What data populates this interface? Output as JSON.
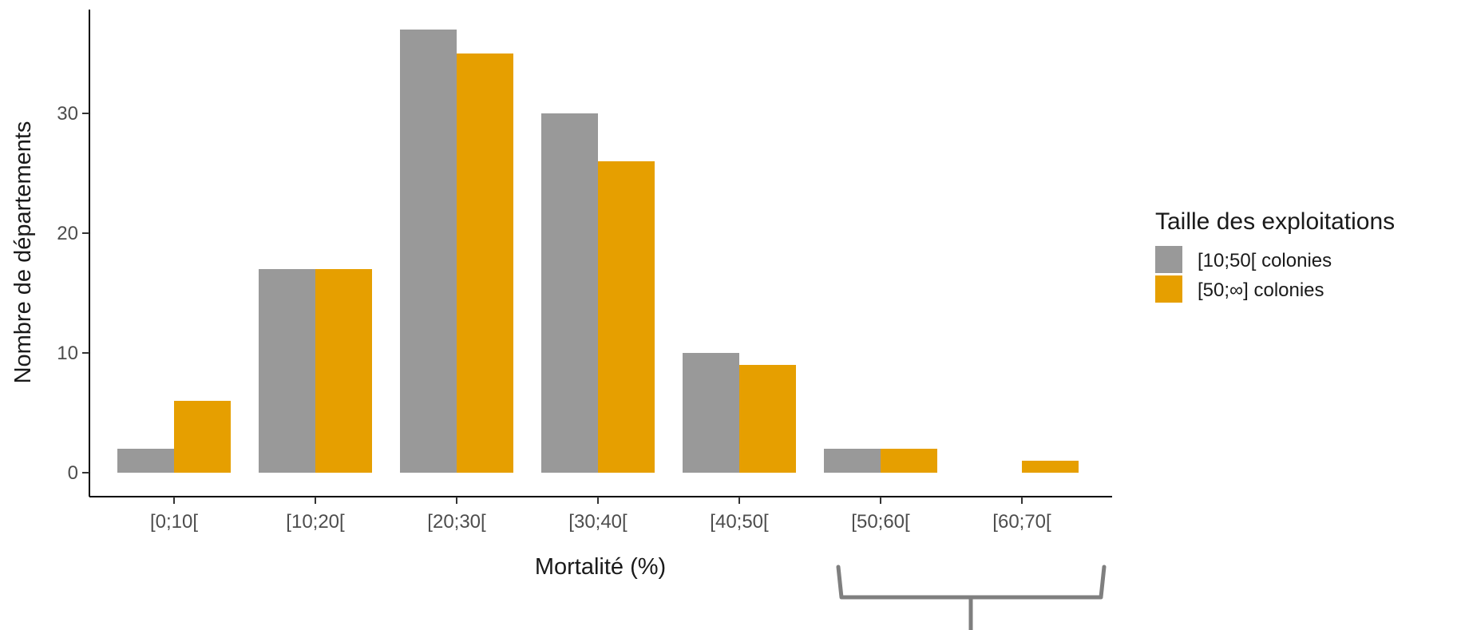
{
  "chart_data": {
    "type": "bar",
    "xlabel": "Mortalité (%)",
    "ylabel": "Nombre de départements",
    "categories": [
      "[0;10[",
      "[10;20[",
      "[20;30[",
      "[30;40[",
      "[40;50[",
      "[50;60[",
      "[60;70["
    ],
    "y_ticks": [
      0,
      10,
      20,
      30
    ],
    "ylim": [
      0,
      38
    ],
    "grid": false,
    "legend": {
      "title": "Taille des exploitations",
      "placement": "right"
    },
    "series": [
      {
        "name": "[10;50[ colonies",
        "color": "#999999",
        "values": [
          2,
          17,
          37,
          30,
          10,
          2,
          0
        ]
      },
      {
        "name": "[50;∞] colonies",
        "color": "#E69F00",
        "values": [
          6,
          17,
          35,
          26,
          9,
          2,
          1
        ]
      }
    ],
    "annotations": [
      {
        "type": "brace-icon",
        "spans_categories": [
          "[50;60[",
          "[60;70["
        ],
        "color": "#7f7f7f"
      }
    ]
  }
}
